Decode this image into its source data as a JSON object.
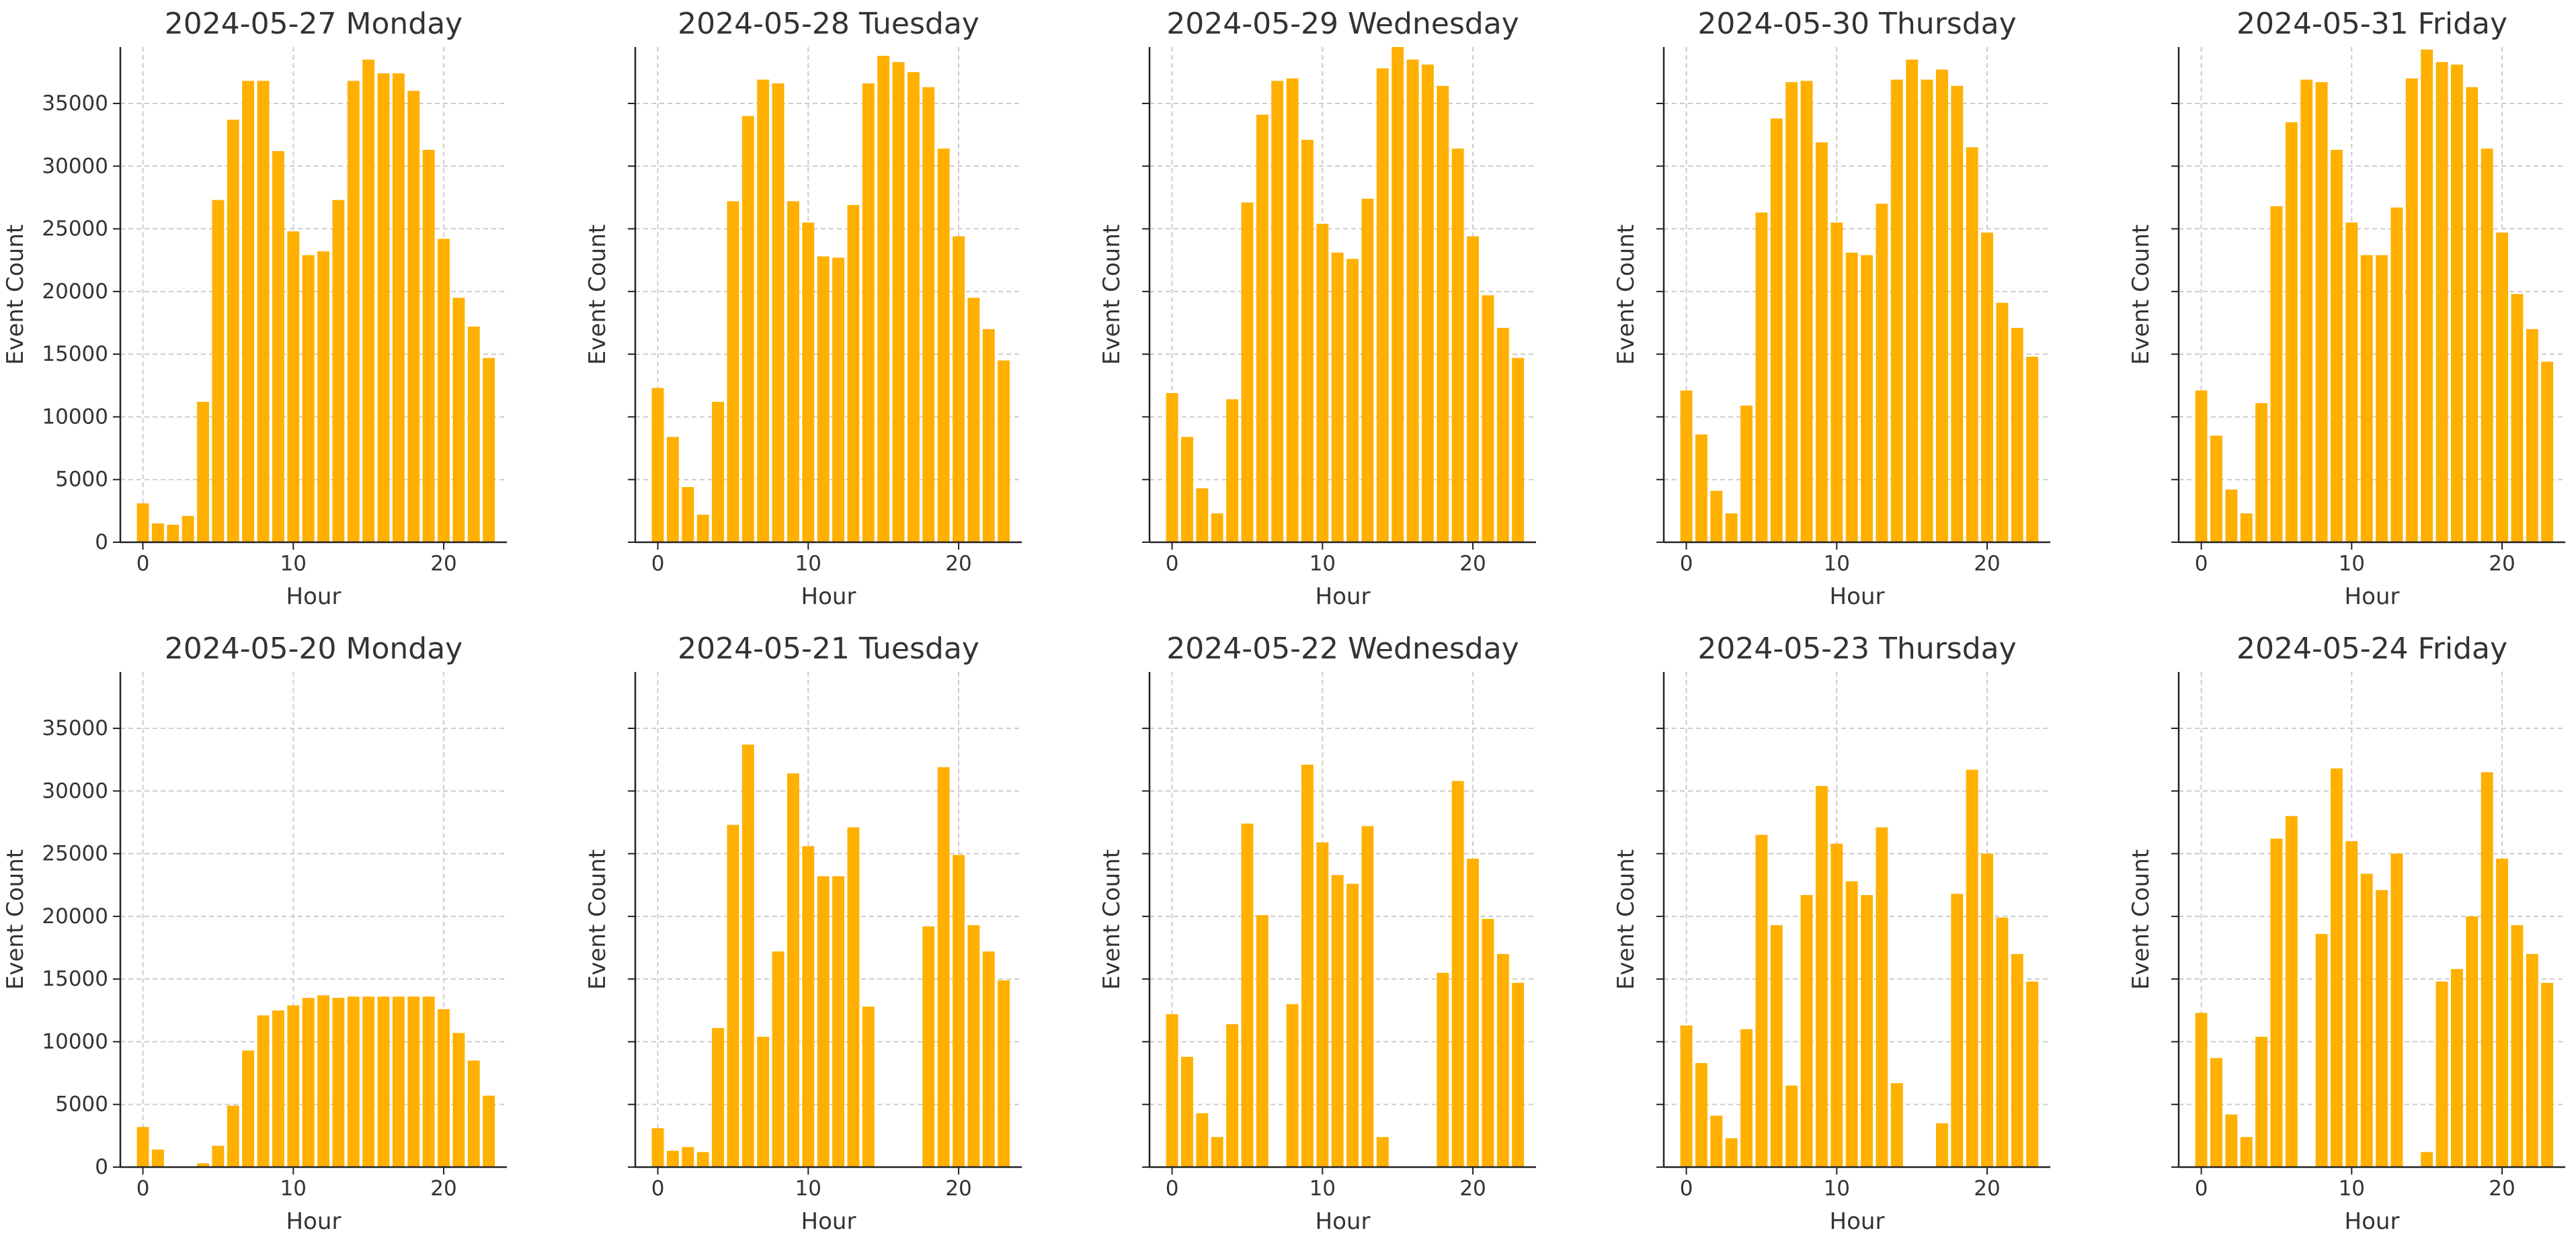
{
  "chart_data": [
    {
      "type": "bar",
      "title": "2024-05-27 Monday",
      "xlabel": "Hour",
      "ylabel": "Event Count",
      "color": "#FFB000",
      "xlim": [
        -1.5,
        24.2
      ],
      "ylim": [
        0,
        39500
      ],
      "x_ticks": [
        0,
        10,
        20
      ],
      "y_ticks": [
        0,
        5000,
        10000,
        15000,
        20000,
        25000,
        30000,
        35000
      ],
      "show_y_tick_labels": true,
      "grid": true,
      "x": [
        0,
        1,
        2,
        3,
        4,
        5,
        6,
        7,
        8,
        9,
        10,
        11,
        12,
        13,
        14,
        15,
        16,
        17,
        18,
        19,
        20,
        21,
        22,
        23
      ],
      "values": [
        3100,
        1500,
        1400,
        2100,
        11200,
        27300,
        33700,
        36800,
        36800,
        31200,
        24800,
        22900,
        23200,
        27300,
        36800,
        38500,
        37400,
        37400,
        36000,
        31300,
        24200,
        19500,
        17200,
        14700
      ]
    },
    {
      "type": "bar",
      "title": "2024-05-28 Tuesday",
      "xlabel": "Hour",
      "ylabel": "Event Count",
      "color": "#FFB000",
      "xlim": [
        -1.5,
        24.2
      ],
      "ylim": [
        0,
        39500
      ],
      "x_ticks": [
        0,
        10,
        20
      ],
      "y_ticks": [
        0,
        5000,
        10000,
        15000,
        20000,
        25000,
        30000,
        35000
      ],
      "show_y_tick_labels": false,
      "grid": true,
      "x": [
        0,
        1,
        2,
        3,
        4,
        5,
        6,
        7,
        8,
        9,
        10,
        11,
        12,
        13,
        14,
        15,
        16,
        17,
        18,
        19,
        20,
        21,
        22,
        23
      ],
      "values": [
        12300,
        8400,
        4400,
        2200,
        11200,
        27200,
        34000,
        36900,
        36600,
        27200,
        25500,
        22800,
        22700,
        26900,
        36600,
        38800,
        38300,
        37500,
        36300,
        31400,
        24400,
        19500,
        17000,
        14500
      ]
    },
    {
      "type": "bar",
      "title": "2024-05-29 Wednesday",
      "xlabel": "Hour",
      "ylabel": "Event Count",
      "color": "#FFB000",
      "xlim": [
        -1.5,
        24.2
      ],
      "ylim": [
        0,
        39500
      ],
      "x_ticks": [
        0,
        10,
        20
      ],
      "y_ticks": [
        0,
        5000,
        10000,
        15000,
        20000,
        25000,
        30000,
        35000
      ],
      "show_y_tick_labels": false,
      "grid": true,
      "x": [
        0,
        1,
        2,
        3,
        4,
        5,
        6,
        7,
        8,
        9,
        10,
        11,
        12,
        13,
        14,
        15,
        16,
        17,
        18,
        19,
        20,
        21,
        22,
        23
      ],
      "values": [
        11900,
        8400,
        4300,
        2300,
        11400,
        27100,
        34100,
        36800,
        37000,
        32100,
        25400,
        23100,
        22600,
        27400,
        37800,
        39500,
        38500,
        38100,
        36400,
        31400,
        24400,
        19700,
        17100,
        14700
      ]
    },
    {
      "type": "bar",
      "title": "2024-05-30 Thursday",
      "xlabel": "Hour",
      "ylabel": "Event Count",
      "color": "#FFB000",
      "xlim": [
        -1.5,
        24.2
      ],
      "ylim": [
        0,
        39500
      ],
      "x_ticks": [
        0,
        10,
        20
      ],
      "y_ticks": [
        0,
        5000,
        10000,
        15000,
        20000,
        25000,
        30000,
        35000
      ],
      "show_y_tick_labels": false,
      "grid": true,
      "x": [
        0,
        1,
        2,
        3,
        4,
        5,
        6,
        7,
        8,
        9,
        10,
        11,
        12,
        13,
        14,
        15,
        16,
        17,
        18,
        19,
        20,
        21,
        22,
        23
      ],
      "values": [
        12100,
        8600,
        4100,
        2300,
        10900,
        26300,
        33800,
        36700,
        36800,
        31900,
        25500,
        23100,
        22900,
        27000,
        36900,
        38500,
        36900,
        37700,
        36400,
        31500,
        24700,
        19100,
        17100,
        14800
      ]
    },
    {
      "type": "bar",
      "title": "2024-05-31 Friday",
      "xlabel": "Hour",
      "ylabel": "Event Count",
      "color": "#FFB000",
      "xlim": [
        -1.5,
        24.2
      ],
      "ylim": [
        0,
        39500
      ],
      "x_ticks": [
        0,
        10,
        20
      ],
      "y_ticks": [
        0,
        5000,
        10000,
        15000,
        20000,
        25000,
        30000,
        35000
      ],
      "show_y_tick_labels": false,
      "grid": true,
      "x": [
        0,
        1,
        2,
        3,
        4,
        5,
        6,
        7,
        8,
        9,
        10,
        11,
        12,
        13,
        14,
        15,
        16,
        17,
        18,
        19,
        20,
        21,
        22,
        23
      ],
      "values": [
        12100,
        8500,
        4200,
        2300,
        11100,
        26800,
        33500,
        36900,
        36700,
        31300,
        25500,
        22900,
        22900,
        26700,
        37000,
        39300,
        38300,
        38100,
        36300,
        31400,
        24700,
        19800,
        17000,
        14400
      ]
    },
    {
      "type": "bar",
      "title": "2024-05-20 Monday",
      "xlabel": "Hour",
      "ylabel": "Event Count",
      "color": "#FFB000",
      "xlim": [
        -1.5,
        24.2
      ],
      "ylim": [
        0,
        39500
      ],
      "x_ticks": [
        0,
        10,
        20
      ],
      "y_ticks": [
        0,
        5000,
        10000,
        15000,
        20000,
        25000,
        30000,
        35000
      ],
      "show_y_tick_labels": true,
      "grid": true,
      "x": [
        0,
        1,
        2,
        3,
        4,
        5,
        6,
        7,
        8,
        9,
        10,
        11,
        12,
        13,
        14,
        15,
        16,
        17,
        18,
        19,
        20,
        21,
        22,
        23
      ],
      "values": [
        3200,
        1400,
        0,
        0,
        300,
        1700,
        4900,
        9300,
        12100,
        12500,
        12900,
        13500,
        13700,
        13500,
        13600,
        13600,
        13600,
        13600,
        13600,
        13600,
        12600,
        10700,
        8500,
        5700
      ]
    },
    {
      "type": "bar",
      "title": "2024-05-21 Tuesday",
      "xlabel": "Hour",
      "ylabel": "Event Count",
      "color": "#FFB000",
      "xlim": [
        -1.5,
        24.2
      ],
      "ylim": [
        0,
        39500
      ],
      "x_ticks": [
        0,
        10,
        20
      ],
      "y_ticks": [
        0,
        5000,
        10000,
        15000,
        20000,
        25000,
        30000,
        35000
      ],
      "show_y_tick_labels": false,
      "grid": true,
      "x": [
        0,
        1,
        2,
        3,
        4,
        5,
        6,
        7,
        8,
        9,
        10,
        11,
        12,
        13,
        14,
        15,
        16,
        17,
        18,
        19,
        20,
        21,
        22,
        23
      ],
      "values": [
        3100,
        1300,
        1600,
        1200,
        11100,
        27300,
        33700,
        10400,
        17200,
        31400,
        25600,
        23200,
        23200,
        27100,
        12800,
        0,
        0,
        0,
        19200,
        31900,
        24900,
        19300,
        17200,
        14900
      ]
    },
    {
      "type": "bar",
      "title": "2024-05-22 Wednesday",
      "xlabel": "Hour",
      "ylabel": "Event Count",
      "color": "#FFB000",
      "xlim": [
        -1.5,
        24.2
      ],
      "ylim": [
        0,
        39500
      ],
      "x_ticks": [
        0,
        10,
        20
      ],
      "y_ticks": [
        0,
        5000,
        10000,
        15000,
        20000,
        25000,
        30000,
        35000
      ],
      "show_y_tick_labels": false,
      "grid": true,
      "x": [
        0,
        1,
        2,
        3,
        4,
        5,
        6,
        7,
        8,
        9,
        10,
        11,
        12,
        13,
        14,
        15,
        16,
        17,
        18,
        19,
        20,
        21,
        22,
        23
      ],
      "values": [
        12200,
        8800,
        4300,
        2400,
        11400,
        27400,
        20100,
        0,
        13000,
        32100,
        25900,
        23300,
        22600,
        27200,
        2400,
        0,
        0,
        0,
        15500,
        30800,
        24600,
        19800,
        17000,
        14700
      ]
    },
    {
      "type": "bar",
      "title": "2024-05-23 Thursday",
      "xlabel": "Hour",
      "ylabel": "Event Count",
      "color": "#FFB000",
      "xlim": [
        -1.5,
        24.2
      ],
      "ylim": [
        0,
        39500
      ],
      "x_ticks": [
        0,
        10,
        20
      ],
      "y_ticks": [
        0,
        5000,
        10000,
        15000,
        20000,
        25000,
        30000,
        35000
      ],
      "show_y_tick_labels": false,
      "grid": true,
      "x": [
        0,
        1,
        2,
        3,
        4,
        5,
        6,
        7,
        8,
        9,
        10,
        11,
        12,
        13,
        14,
        15,
        16,
        17,
        18,
        19,
        20,
        21,
        22,
        23
      ],
      "values": [
        11300,
        8300,
        4100,
        2300,
        11000,
        26500,
        19300,
        6500,
        21700,
        30400,
        25800,
        22800,
        21700,
        27100,
        6700,
        0,
        0,
        3500,
        21800,
        31700,
        25000,
        19900,
        17000,
        14800
      ]
    },
    {
      "type": "bar",
      "title": "2024-05-24 Friday",
      "xlabel": "Hour",
      "ylabel": "Event Count",
      "color": "#FFB000",
      "xlim": [
        -1.5,
        24.2
      ],
      "ylim": [
        0,
        39500
      ],
      "x_ticks": [
        0,
        10,
        20
      ],
      "y_ticks": [
        0,
        5000,
        10000,
        15000,
        20000,
        25000,
        30000,
        35000
      ],
      "show_y_tick_labels": false,
      "grid": true,
      "x": [
        0,
        1,
        2,
        3,
        4,
        5,
        6,
        7,
        8,
        9,
        10,
        11,
        12,
        13,
        14,
        15,
        16,
        17,
        18,
        19,
        20,
        21,
        22,
        23
      ],
      "values": [
        12300,
        8700,
        4200,
        2400,
        10400,
        26200,
        28000,
        0,
        18600,
        31800,
        26000,
        23400,
        22100,
        25000,
        0,
        1200,
        14800,
        15800,
        20000,
        31500,
        24600,
        19300,
        17000,
        14700
      ]
    }
  ]
}
